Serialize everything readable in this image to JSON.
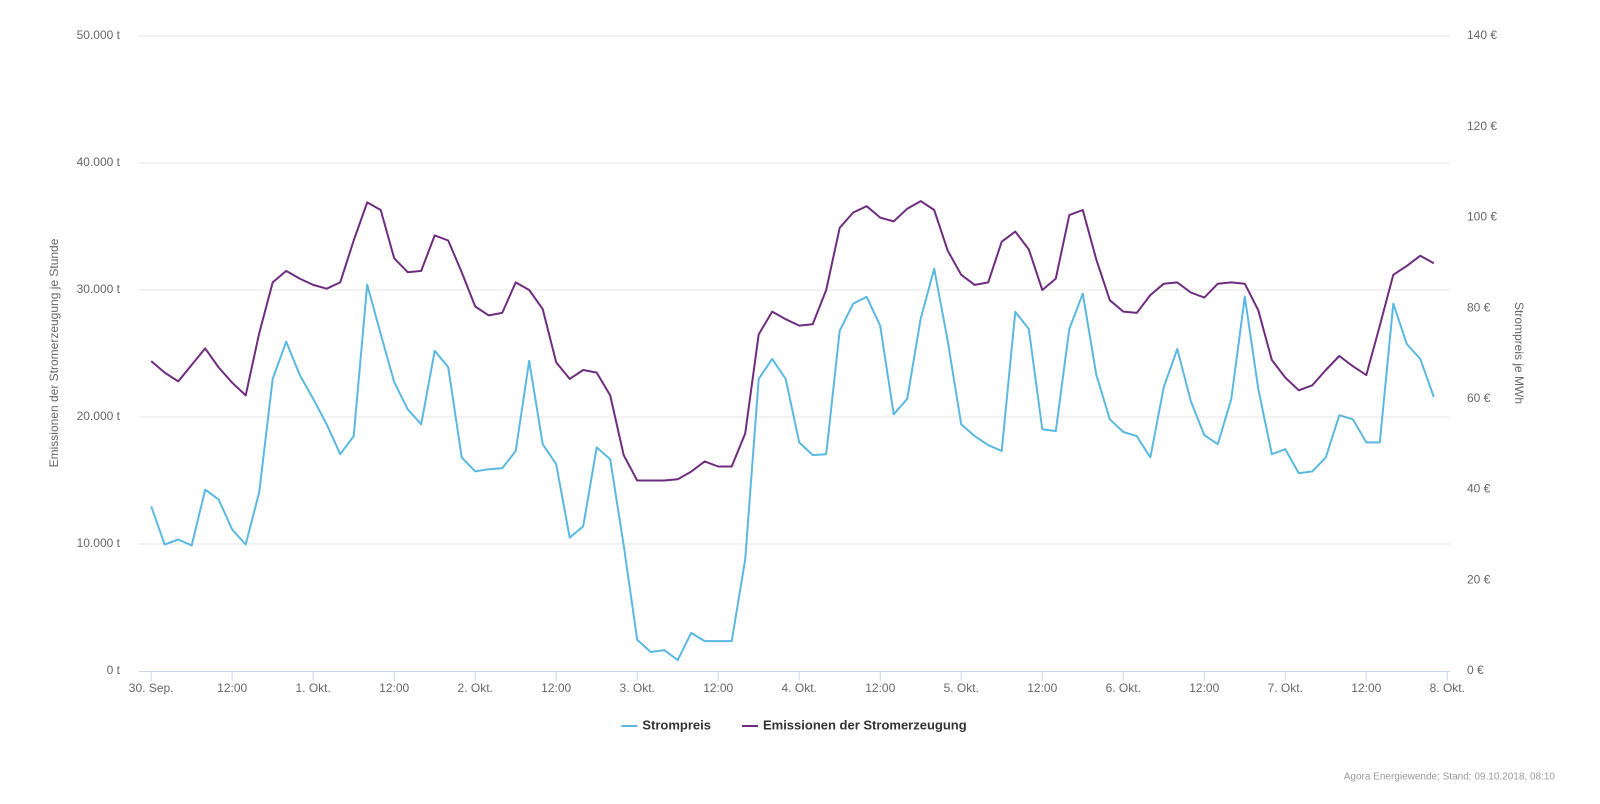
{
  "chart_data": {
    "type": "line",
    "x": [
      0,
      2,
      4,
      6,
      8,
      10,
      12,
      14,
      16,
      18,
      20,
      22,
      24,
      26,
      28,
      30,
      32,
      34,
      36,
      38,
      40,
      42,
      44,
      46,
      48,
      50,
      52,
      54,
      56,
      58,
      60,
      62,
      64,
      66,
      68,
      70,
      72,
      74,
      76,
      78,
      80,
      82,
      84,
      86,
      88,
      90,
      92,
      94,
      96,
      98,
      100,
      102,
      104,
      106,
      108,
      110,
      112,
      114,
      116,
      118,
      120,
      122,
      124,
      126,
      128,
      130,
      132,
      134,
      136,
      138,
      140,
      142,
      144,
      146,
      148,
      150,
      152,
      154,
      156,
      158,
      160,
      162,
      164,
      166,
      168,
      170,
      172,
      174,
      176,
      178,
      180,
      182,
      184,
      186,
      188,
      190
    ],
    "xlim": [
      -1.8,
      192.4
    ],
    "xticks": [
      {
        "value": 0,
        "label": "30. Sep."
      },
      {
        "value": 12,
        "label": "12:00"
      },
      {
        "value": 24,
        "label": "1. Okt."
      },
      {
        "value": 36,
        "label": "12:00"
      },
      {
        "value": 48,
        "label": "2. Okt."
      },
      {
        "value": 60,
        "label": "12:00"
      },
      {
        "value": 72,
        "label": "3. Okt."
      },
      {
        "value": 84,
        "label": "12:00"
      },
      {
        "value": 96,
        "label": "4. Okt."
      },
      {
        "value": 108,
        "label": "12:00"
      },
      {
        "value": 120,
        "label": "5. Okt."
      },
      {
        "value": 132,
        "label": "12:00"
      },
      {
        "value": 144,
        "label": "6. Okt."
      },
      {
        "value": 156,
        "label": "12:00"
      },
      {
        "value": 168,
        "label": "7. Okt."
      },
      {
        "value": 180,
        "label": "12:00"
      },
      {
        "value": 192,
        "label": "8. Okt."
      }
    ],
    "ylabel": "Emissionen der Stromerzeugung je Stunde",
    "y2label": "Strompreis je MWh",
    "ylim": [
      0,
      50000
    ],
    "yticks": [
      {
        "value": 0,
        "label": "0 t"
      },
      {
        "value": 10000,
        "label": "10.000 t"
      },
      {
        "value": 20000,
        "label": "20.000 t"
      },
      {
        "value": 30000,
        "label": "30.000 t"
      },
      {
        "value": 40000,
        "label": "40.000 t"
      },
      {
        "value": 50000,
        "label": "50.000 t"
      }
    ],
    "y2lim": [
      0,
      140
    ],
    "y2ticks": [
      {
        "value": 0,
        "label": "0 €"
      },
      {
        "value": 20,
        "label": "20 €"
      },
      {
        "value": 40,
        "label": "40 €"
      },
      {
        "value": 60,
        "label": "60 €"
      },
      {
        "value": 80,
        "label": "80 €"
      },
      {
        "value": 100,
        "label": "100 €"
      },
      {
        "value": 120,
        "label": "120 €"
      },
      {
        "value": 140,
        "label": "140 €"
      }
    ],
    "grid": true,
    "legend": "bottom",
    "series": [
      {
        "name": "Strompreis",
        "color": "#5bb8e0",
        "axis": "y2",
        "values": [
          36.3,
          27.9,
          29.0,
          27.7,
          40.0,
          37.8,
          31.2,
          27.9,
          39.4,
          64.4,
          72.6,
          65.3,
          60.0,
          54.4,
          47.8,
          51.8,
          85.2,
          74.3,
          63.7,
          57.7,
          54.4,
          70.6,
          67.0,
          47.1,
          44.0,
          44.5,
          44.7,
          48.5,
          68.4,
          50.0,
          45.6,
          29.4,
          31.9,
          49.3,
          46.7,
          27.7,
          6.9,
          4.2,
          4.6,
          2.4,
          8.4,
          6.6,
          6.6,
          6.6,
          24.6,
          64.4,
          68.8,
          64.4,
          50.4,
          47.6,
          47.8,
          75.0,
          81.0,
          82.5,
          76.1,
          56.6,
          60.0,
          77.7,
          88.7,
          72.8,
          54.4,
          51.8,
          49.8,
          48.5,
          79.2,
          75.4,
          53.3,
          52.9,
          75.4,
          83.2,
          65.3,
          55.5,
          52.7,
          51.8,
          47.1,
          62.6,
          71.0,
          59.5,
          52.0,
          50.0,
          60.0,
          82.5,
          62.2,
          47.8,
          48.9,
          43.6,
          44.0,
          47.1,
          56.4,
          55.5,
          50.4,
          50.4,
          81.0,
          72.1,
          68.8,
          60.4
        ]
      },
      {
        "name": "Emissionen der Stromerzeugung",
        "color": "#6e2d7e",
        "values": [
          24400,
          23500,
          22800,
          24100,
          25400,
          23900,
          22700,
          21700,
          26600,
          30600,
          31500,
          30900,
          30400,
          30100,
          30600,
          33900,
          36900,
          36300,
          32500,
          31400,
          31500,
          34300,
          33900,
          31400,
          28700,
          28000,
          28200,
          30600,
          30000,
          28500,
          24300,
          23000,
          23700,
          23500,
          21700,
          17000,
          15000,
          15000,
          15000,
          15100,
          15700,
          16500,
          16100,
          16100,
          18700,
          26500,
          28300,
          27700,
          27200,
          27300,
          30000,
          34900,
          36100,
          36600,
          35700,
          35400,
          36400,
          37000,
          36300,
          33100,
          31200,
          30400,
          30600,
          33800,
          34600,
          33200,
          30000,
          30900,
          35900,
          36300,
          32400,
          29200,
          28300,
          28200,
          29600,
          30500,
          30600,
          29800,
          29400,
          30500,
          30600,
          30500,
          28400,
          24500,
          23100,
          22100,
          22500,
          23700,
          24800,
          24000,
          23300,
          27200,
          31200,
          31900,
          32700,
          32100
        ]
      }
    ],
    "credit": "Agora Energiewende; Stand: 09.10.2018, 08:10"
  }
}
